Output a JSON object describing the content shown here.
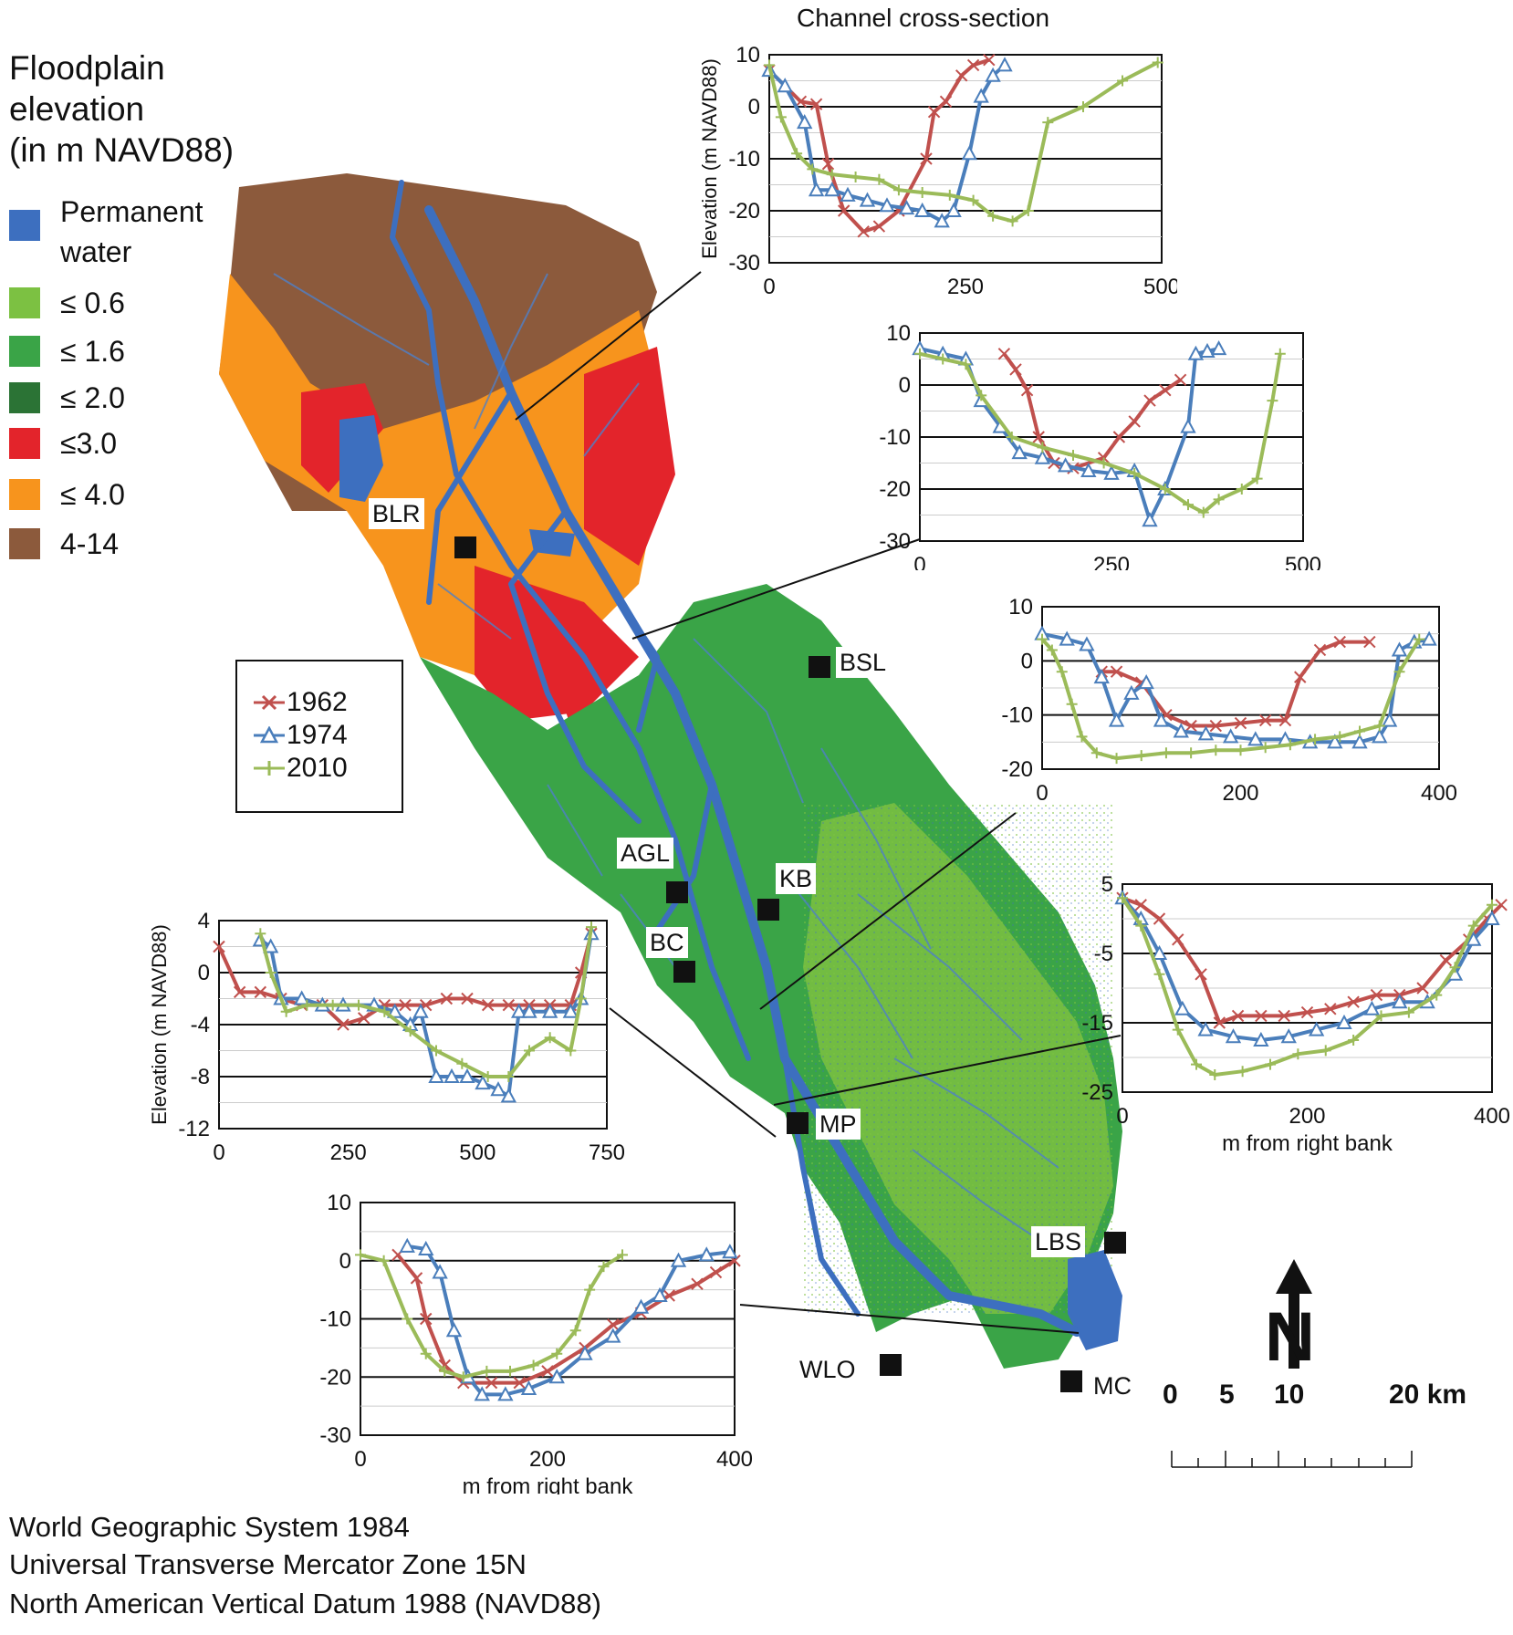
{
  "legend": {
    "title": "Floodplain elevation (in m NAVD88)",
    "title_lines": [
      "Floodplain",
      "elevation",
      "(in m NAVD88)"
    ],
    "classes": [
      {
        "label": "Permanent water",
        "lines": [
          "Permanent",
          "water"
        ],
        "color": "#3d6fbf"
      },
      {
        "label": "≤ 0.6",
        "color": "#7cc142"
      },
      {
        "label": "≤ 1.6",
        "color": "#3aa447"
      },
      {
        "label": "≤ 2.0",
        "color": "#2b7335"
      },
      {
        "label": "≤3.0",
        "color": "#e3242b"
      },
      {
        "label": "≤ 4.0",
        "color": "#f7941d"
      },
      {
        "label": "4-14",
        "color": "#8c5a3c"
      }
    ]
  },
  "series_legend": {
    "entries": [
      {
        "name": "1962",
        "color": "#c0504d",
        "marker": "x-marker"
      },
      {
        "name": "1974",
        "color": "#4a7ebb",
        "marker": "triangle-marker"
      },
      {
        "name": "2010",
        "color": "#9bbb59",
        "marker": "plus-marker"
      }
    ]
  },
  "sites": [
    "BLR",
    "BSL",
    "AGL",
    "KB",
    "BC",
    "MP",
    "LBS",
    "WLO",
    "MC"
  ],
  "cross_section_title": "Channel cross-section",
  "y_axis_label": "Elevation (m NAVD88)",
  "x_axis_label": "m from right bank",
  "north_label": "N",
  "scale_bar": {
    "labels": [
      "0",
      "5",
      "10",
      "20 km"
    ]
  },
  "footer": [
    "World Geographic System 1984",
    "Universal Transverse Mercator Zone 15N",
    "North American Vertical Datum 1988 (NAVD88)"
  ],
  "chart_data": [
    {
      "type": "line",
      "title": "Channel cross-section",
      "ylabel": "Elevation (m NAVD88)",
      "xlabel": "",
      "xlim": [
        0,
        500
      ],
      "ylim": [
        -30,
        10
      ],
      "xticks": [
        0,
        250,
        500
      ],
      "yticks": [
        10,
        0,
        -10,
        -20,
        -30
      ],
      "grid": true,
      "series": [
        {
          "name": "1962",
          "x": [
            0,
            40,
            60,
            75,
            95,
            120,
            140,
            165,
            200,
            210,
            225,
            245,
            260,
            280
          ],
          "y": [
            7,
            1,
            0.5,
            -11,
            -20,
            -24,
            -23,
            -20,
            -10,
            -1,
            1,
            6,
            8,
            9
          ]
        },
        {
          "name": "1974",
          "x": [
            0,
            20,
            45,
            60,
            80,
            100,
            125,
            150,
            175,
            195,
            220,
            235,
            255,
            270,
            285,
            300
          ],
          "y": [
            7,
            4,
            -3,
            -16,
            -16,
            -17,
            -18,
            -19,
            -19.5,
            -20,
            -22,
            -20,
            -9,
            2,
            6,
            8
          ]
        },
        {
          "name": "2010",
          "x": [
            0,
            15,
            35,
            55,
            80,
            110,
            140,
            165,
            195,
            230,
            260,
            285,
            310,
            330,
            355,
            400,
            450,
            495
          ],
          "y": [
            8,
            -2,
            -9,
            -12,
            -13,
            -13.5,
            -14,
            -16,
            -16.5,
            -17,
            -18,
            -21,
            -22,
            -20,
            -3,
            0,
            5,
            8.5
          ]
        }
      ]
    },
    {
      "type": "line",
      "xlim": [
        0,
        500
      ],
      "ylim": [
        -30,
        10
      ],
      "xticks": [
        0,
        250,
        500
      ],
      "yticks": [
        10,
        0,
        -10,
        -20,
        -30
      ],
      "grid": true,
      "series": [
        {
          "name": "1962",
          "x": [
            110,
            125,
            140,
            155,
            175,
            200,
            240,
            260,
            280,
            300,
            320,
            340
          ],
          "y": [
            6,
            3,
            -1,
            -10,
            -15,
            -16,
            -14,
            -10,
            -7,
            -3,
            -1,
            1
          ]
        },
        {
          "name": "1974",
          "x": [
            0,
            30,
            60,
            80,
            105,
            130,
            160,
            190,
            220,
            250,
            280,
            300,
            320,
            350,
            360,
            375,
            390
          ],
          "y": [
            7,
            6,
            5,
            -3,
            -8,
            -13,
            -14,
            -15.5,
            -16.5,
            -17,
            -16.5,
            -26,
            -20,
            -8,
            6,
            6.5,
            7
          ]
        },
        {
          "name": "2010",
          "x": [
            0,
            30,
            60,
            80,
            120,
            160,
            200,
            240,
            280,
            320,
            350,
            370,
            390,
            420,
            440,
            460,
            470
          ],
          "y": [
            6,
            5,
            4,
            -2,
            -10,
            -12,
            -13.5,
            -15,
            -17,
            -20,
            -23,
            -24.5,
            -22,
            -20,
            -18,
            -3,
            6
          ]
        }
      ]
    },
    {
      "type": "line",
      "xlim": [
        0,
        400
      ],
      "ylim": [
        -20,
        10
      ],
      "xticks": [
        0,
        200,
        400
      ],
      "yticks": [
        10,
        0,
        -10,
        -20
      ],
      "grid": true,
      "series": [
        {
          "name": "1962",
          "x": [
            60,
            75,
            100,
            125,
            150,
            175,
            200,
            225,
            245,
            260,
            280,
            300,
            330
          ],
          "y": [
            -2,
            -2,
            -4,
            -10,
            -12,
            -12,
            -11.5,
            -11,
            -11,
            -3,
            2,
            3.5,
            3.5
          ]
        },
        {
          "name": "1974",
          "x": [
            0,
            25,
            45,
            60,
            75,
            90,
            105,
            120,
            140,
            165,
            190,
            215,
            245,
            270,
            295,
            320,
            340,
            350,
            360,
            375,
            390
          ],
          "y": [
            5,
            4,
            3,
            -3,
            -11,
            -6,
            -4,
            -11,
            -13,
            -13.5,
            -14,
            -14.5,
            -14.5,
            -15,
            -15,
            -15,
            -14,
            -11,
            2,
            3.5,
            4
          ]
        },
        {
          "name": "2010",
          "x": [
            0,
            10,
            20,
            30,
            40,
            55,
            75,
            100,
            125,
            150,
            175,
            200,
            225,
            250,
            275,
            300,
            320,
            340,
            360,
            380
          ],
          "y": [
            4,
            2,
            -2,
            -8,
            -14,
            -17,
            -18,
            -17.5,
            -17,
            -17,
            -16.5,
            -16.5,
            -16,
            -15.5,
            -14.5,
            -14,
            -13,
            -12,
            -2,
            4
          ]
        }
      ]
    },
    {
      "type": "line",
      "xlabel": "m from right bank",
      "xlim": [
        0,
        400
      ],
      "ylim": [
        -25,
        5
      ],
      "xticks": [
        0,
        200,
        400
      ],
      "yticks": [
        5,
        -5,
        -15,
        -25
      ],
      "grid": true,
      "series": [
        {
          "name": "1962",
          "x": [
            0,
            20,
            40,
            60,
            85,
            105,
            125,
            150,
            175,
            200,
            225,
            250,
            275,
            300,
            325,
            350,
            375,
            395,
            410
          ],
          "y": [
            3,
            2,
            0,
            -3,
            -8,
            -15,
            -14,
            -14,
            -14,
            -13.5,
            -13,
            -12,
            -11,
            -11,
            -10,
            -6,
            -3,
            0,
            2
          ]
        },
        {
          "name": "1974",
          "x": [
            0,
            20,
            40,
            65,
            90,
            120,
            150,
            180,
            210,
            240,
            270,
            300,
            330,
            360,
            380,
            400
          ],
          "y": [
            3,
            0,
            -5,
            -13,
            -16,
            -17,
            -17.5,
            -17,
            -16,
            -15,
            -13,
            -12,
            -12,
            -8,
            -3,
            0
          ]
        },
        {
          "name": "2010",
          "x": [
            0,
            20,
            40,
            60,
            80,
            100,
            130,
            160,
            190,
            220,
            250,
            280,
            310,
            340,
            360,
            380,
            400
          ],
          "y": [
            3,
            -1,
            -8,
            -16,
            -21,
            -22.5,
            -22,
            -21,
            -19.5,
            -19,
            -17.5,
            -14,
            -13.5,
            -11,
            -7,
            -1,
            2
          ]
        }
      ]
    },
    {
      "type": "line",
      "ylabel": "Elevation (m NAVD88)",
      "xlim": [
        0,
        750
      ],
      "ylim": [
        -12,
        4
      ],
      "xticks": [
        0,
        250,
        500,
        750
      ],
      "yticks": [
        4,
        0,
        -4,
        -8,
        -12
      ],
      "grid": true,
      "series": [
        {
          "name": "1962",
          "x": [
            0,
            40,
            80,
            120,
            160,
            200,
            240,
            280,
            320,
            360,
            400,
            440,
            480,
            520,
            560,
            600,
            640,
            680,
            700,
            720
          ],
          "y": [
            2,
            -1.5,
            -1.5,
            -2,
            -2.5,
            -2.5,
            -4,
            -3.5,
            -2.5,
            -2.5,
            -2.5,
            -2,
            -2,
            -2.5,
            -2.5,
            -2.5,
            -2.5,
            -2.5,
            0,
            3
          ]
        },
        {
          "name": "1974",
          "x": [
            80,
            100,
            120,
            160,
            200,
            240,
            300,
            340,
            370,
            390,
            420,
            450,
            480,
            510,
            540,
            560,
            580,
            600,
            640,
            680,
            700,
            720
          ],
          "y": [
            2.5,
            2,
            -2,
            -2,
            -2.5,
            -2.5,
            -2.5,
            -3,
            -4,
            -3,
            -8,
            -8,
            -8,
            -8.5,
            -9,
            -9.5,
            -3,
            -3,
            -3,
            -3,
            -2,
            3
          ]
        },
        {
          "name": "2010",
          "x": [
            80,
            100,
            130,
            170,
            220,
            270,
            320,
            370,
            420,
            470,
            520,
            560,
            600,
            640,
            680,
            700,
            720
          ],
          "y": [
            3,
            0,
            -3,
            -2.5,
            -2.5,
            -2.5,
            -3,
            -4.5,
            -6,
            -7,
            -8,
            -8,
            -6,
            -5,
            -6,
            -2,
            3.5
          ]
        }
      ]
    },
    {
      "type": "line",
      "xlabel": "m from right bank",
      "xlim": [
        0,
        400
      ],
      "ylim": [
        -30,
        10
      ],
      "xticks": [
        0,
        200,
        400
      ],
      "yticks": [
        10,
        0,
        -10,
        -20,
        -30
      ],
      "grid": true,
      "series": [
        {
          "name": "1962",
          "x": [
            40,
            60,
            70,
            90,
            110,
            140,
            170,
            200,
            240,
            270,
            300,
            330,
            360,
            380,
            400
          ],
          "y": [
            1,
            -3,
            -10,
            -18,
            -21,
            -21,
            -21,
            -19,
            -15,
            -11,
            -9,
            -6,
            -4,
            -2,
            0
          ]
        },
        {
          "name": "1974",
          "x": [
            50,
            70,
            85,
            100,
            115,
            130,
            155,
            180,
            210,
            240,
            270,
            300,
            320,
            340,
            370,
            395
          ],
          "y": [
            2.5,
            2,
            -2,
            -12,
            -20,
            -23,
            -23,
            -22,
            -20,
            -16,
            -13,
            -8,
            -6,
            0,
            1,
            1.5
          ]
        },
        {
          "name": "2010",
          "x": [
            0,
            25,
            50,
            70,
            90,
            110,
            135,
            160,
            185,
            210,
            230,
            245,
            260,
            280
          ],
          "y": [
            1,
            0,
            -10,
            -16,
            -19,
            -20,
            -19,
            -19,
            -18,
            -16,
            -12,
            -5,
            -1,
            1
          ]
        }
      ]
    }
  ]
}
